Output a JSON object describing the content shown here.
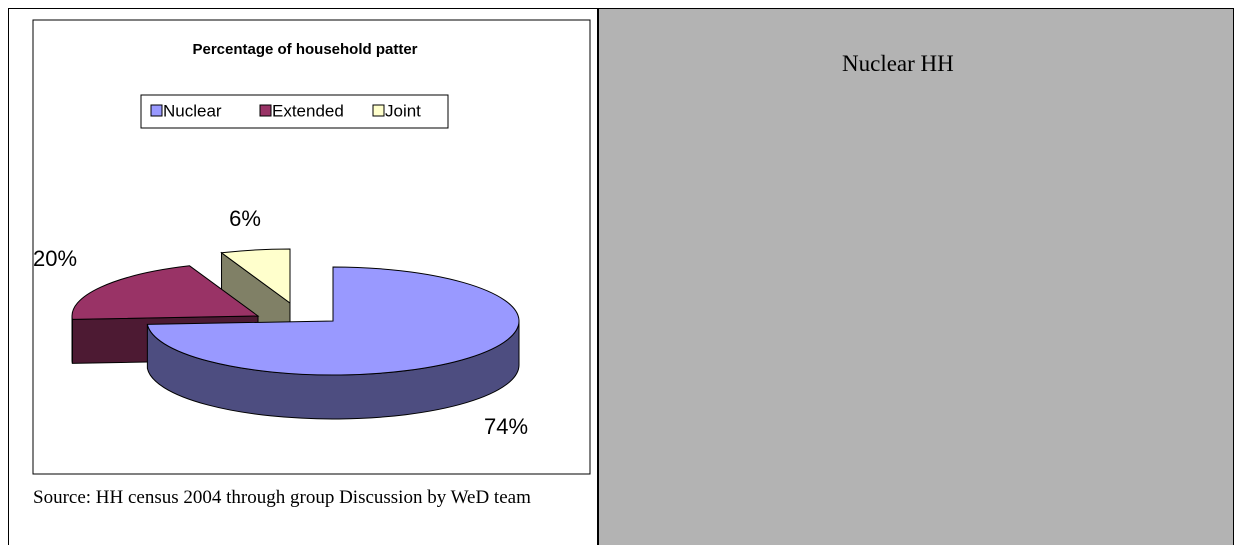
{
  "chart_data": {
    "type": "pie",
    "title": "Percentage of household patter",
    "categories": [
      "Nuclear",
      "Extended",
      "Joint"
    ],
    "values": [
      74,
      20,
      6
    ],
    "value_labels": [
      "74%",
      "20%",
      "6%"
    ],
    "colors": [
      "#9999ff",
      "#993366",
      "#ffffcc"
    ],
    "side_colors": [
      "#4d4d80",
      "#4d1a33",
      "#808066"
    ]
  },
  "source": "Source: HH census 2004 through group Discussion by WeD team",
  "side_text": "Nuclear HH"
}
